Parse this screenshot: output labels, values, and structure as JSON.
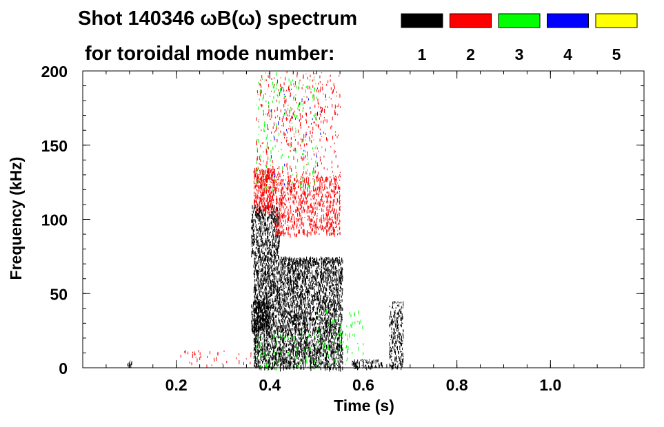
{
  "chart_data": {
    "type": "heatmap",
    "title": "Shot 140346 ωB(ω) spectrum",
    "legend_title": "for toroidal mode number:",
    "legend": [
      {
        "label": "1",
        "color": "#000000"
      },
      {
        "label": "2",
        "color": "#ff0000"
      },
      {
        "label": "3",
        "color": "#00ff00"
      },
      {
        "label": "4",
        "color": "#0000ff"
      },
      {
        "label": "5",
        "color": "#ffff00"
      }
    ],
    "legend_placement": "top-right",
    "xlabel": "Time (s)",
    "ylabel": "Frequency (kHz)",
    "xlim": [
      0.0,
      1.2
    ],
    "ylim": [
      0,
      200
    ],
    "x_ticks": [
      {
        "value": 0.2,
        "label": "0.2"
      },
      {
        "value": 0.4,
        "label": "0.4"
      },
      {
        "value": 0.6,
        "label": "0.6"
      },
      {
        "value": 0.8,
        "label": "0.8"
      },
      {
        "value": 1.0,
        "label": "1.0"
      }
    ],
    "y_ticks": [
      {
        "value": 0,
        "label": "0"
      },
      {
        "value": 50,
        "label": "50"
      },
      {
        "value": 100,
        "label": "100"
      },
      {
        "value": 150,
        "label": "150"
      },
      {
        "value": 200,
        "label": "200"
      }
    ],
    "grid": false,
    "series": [
      {
        "mode": "1",
        "color": "#000000",
        "regions": [
          {
            "t": [
              0.365,
              0.555
            ],
            "f": [
              0,
              75
            ],
            "density": 0.55
          },
          {
            "t": [
              0.36,
              0.42
            ],
            "f": [
              75,
              110
            ],
            "density": 0.5
          },
          {
            "t": [
              0.36,
              0.4
            ],
            "f": [
              25,
              45
            ],
            "density": 0.8
          },
          {
            "t": [
              0.575,
              0.64
            ],
            "f": [
              0,
              6
            ],
            "density": 0.5
          },
          {
            "t": [
              0.655,
              0.685
            ],
            "f": [
              0,
              45
            ],
            "density": 0.35
          },
          {
            "t": [
              0.095,
              0.105
            ],
            "f": [
              2,
              5
            ],
            "density": 0.8
          }
        ]
      },
      {
        "mode": "2",
        "color": "#ff0000",
        "regions": [
          {
            "t": [
              0.365,
              0.41
            ],
            "f": [
              105,
              135
            ],
            "density": 0.55
          },
          {
            "t": [
              0.41,
              0.55
            ],
            "f": [
              90,
              130
            ],
            "density": 0.3
          },
          {
            "t": [
              0.37,
              0.55
            ],
            "f": [
              130,
              200
            ],
            "density": 0.06
          },
          {
            "t": [
              0.2,
              0.36
            ],
            "f": [
              2,
              12
            ],
            "density": 0.05
          }
        ]
      },
      {
        "mode": "3",
        "color": "#00ff00",
        "regions": [
          {
            "t": [
              0.37,
              0.57
            ],
            "f": [
              0,
              25
            ],
            "density": 0.06
          },
          {
            "t": [
              0.37,
              0.5
            ],
            "f": [
              120,
              200
            ],
            "density": 0.04
          },
          {
            "t": [
              0.5,
              0.6
            ],
            "f": [
              10,
              40
            ],
            "density": 0.04
          }
        ]
      },
      {
        "mode": "4",
        "color": "#0000ff",
        "regions": [
          {
            "t": [
              0.39,
              0.52
            ],
            "f": [
              120,
              190
            ],
            "density": 0.01
          }
        ]
      },
      {
        "mode": "5",
        "color": "#ffff00",
        "regions": []
      }
    ]
  }
}
